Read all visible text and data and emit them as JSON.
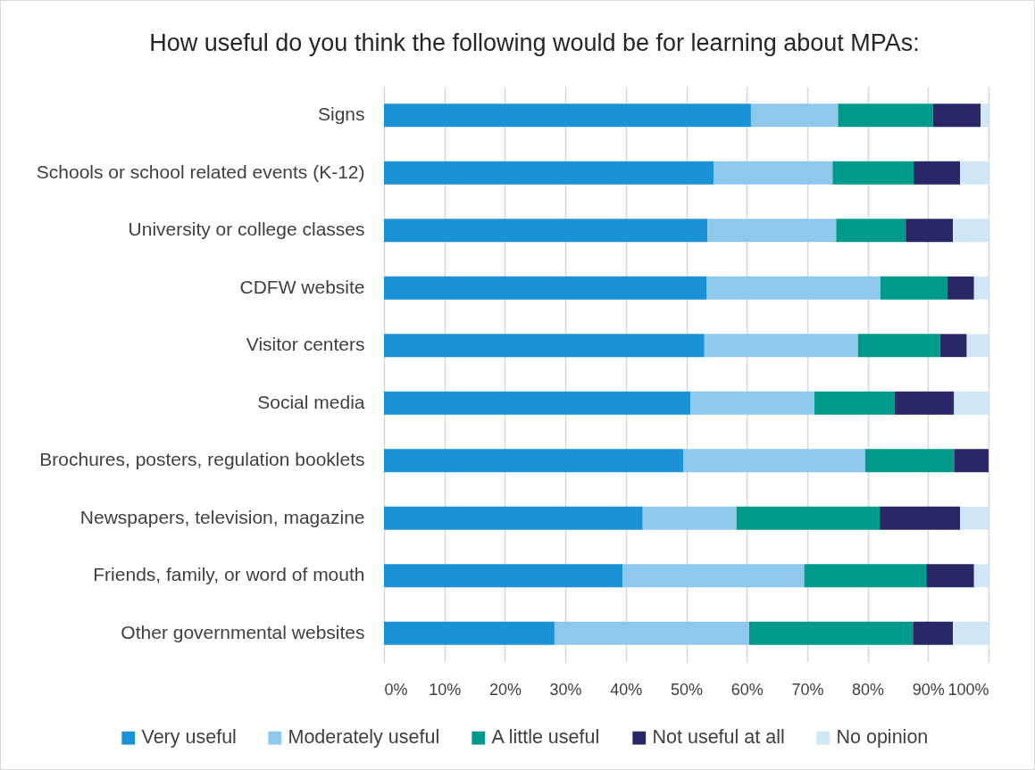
{
  "chart_data": {
    "type": "bar",
    "orientation": "horizontal",
    "stacked": true,
    "title": "How useful do you think the following would be for learning about MPAs:",
    "categories": [
      "Signs",
      "Schools or school related events (K-12)",
      "University or college classes",
      "CDFW website",
      "Visitor centers",
      "Social media",
      "Brochures, posters, regulation booklets",
      "Newspapers, television, magazine",
      "Friends, family, or word of mouth",
      "Other governmental websites"
    ],
    "series": [
      {
        "name": "Very useful",
        "color": "#1b92d6",
        "values": [
          60.7,
          54.5,
          53.5,
          53.4,
          53.0,
          50.7,
          49.5,
          42.8,
          39.5,
          28.2
        ]
      },
      {
        "name": "Moderately useful",
        "color": "#8ec8ec",
        "values": [
          14.4,
          19.7,
          21.3,
          28.7,
          25.4,
          20.5,
          30.1,
          15.5,
          30.0,
          32.2
        ]
      },
      {
        "name": "A little useful",
        "color": "#009a8c",
        "values": [
          15.7,
          13.4,
          11.5,
          11.1,
          13.6,
          13.3,
          14.7,
          23.7,
          20.2,
          27.1
        ]
      },
      {
        "name": "Not useful at all",
        "color": "#2a2766",
        "values": [
          7.9,
          7.7,
          7.8,
          4.4,
          4.4,
          9.8,
          5.7,
          13.3,
          7.9,
          6.6
        ]
      },
      {
        "name": "No opinion",
        "color": "#cfe7f7",
        "values": [
          1.3,
          4.7,
          5.9,
          2.4,
          3.6,
          5.7,
          null,
          4.7,
          2.4,
          5.9
        ]
      }
    ],
    "xlim": [
      0,
      100
    ],
    "xticks": [
      {
        "value": 0,
        "label": "0%"
      },
      {
        "value": 10,
        "label": "10%"
      },
      {
        "value": 20,
        "label": "20%"
      },
      {
        "value": 30,
        "label": "30%"
      },
      {
        "value": 40,
        "label": "40%"
      },
      {
        "value": 50,
        "label": "50%"
      },
      {
        "value": 60,
        "label": "60%"
      },
      {
        "value": 70,
        "label": "70%"
      },
      {
        "value": 80,
        "label": "80%"
      },
      {
        "value": 90,
        "label": "90%"
      },
      {
        "value": 100,
        "label": "100%"
      }
    ],
    "grid": "x",
    "legend": "bottom"
  }
}
